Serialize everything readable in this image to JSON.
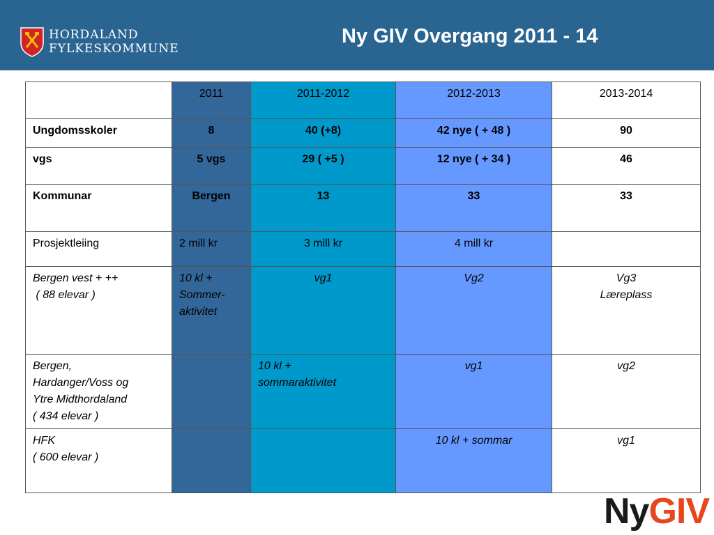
{
  "header": {
    "org_line1": "HORDALAND",
    "org_line2": "FYLKESKOMMUNE",
    "title": "Ny GIV Overgang 2011 - 14",
    "background": "#2a6491",
    "logo_icon": "county-coat-of-arms-icon"
  },
  "table": {
    "col_colors": [
      "#ffffff",
      "#336699",
      "#0099cc",
      "#6699ff",
      "#ffffff"
    ],
    "headers": [
      "",
      "2011",
      "2011-2012",
      "2012-2013",
      "2013-2014"
    ],
    "rows": [
      {
        "cells": [
          "Ungdomsskoler",
          "8",
          "40 (+8)",
          "42 nye ( + 48 )",
          "90"
        ]
      },
      {
        "cells": [
          "vgs",
          "5 vgs",
          "29 ( +5 )",
          "12 nye ( + 34 )",
          "46"
        ]
      },
      {
        "cells": [
          "Kommunar",
          "Bergen",
          "13",
          "33",
          "33"
        ]
      },
      {
        "cells": [
          "Prosjektleiing",
          "2 mill kr",
          "3 mill kr",
          "4 mill kr",
          ""
        ]
      },
      {
        "cells": [
          [
            "Bergen vest + ++",
            " ( 88 elevar )"
          ],
          [
            "10 kl +",
            "Sommer-",
            "aktivitet"
          ],
          [
            "vg1"
          ],
          [
            "Vg2"
          ],
          [
            "Vg3",
            "Læreplass"
          ]
        ]
      },
      {
        "cells": [
          [
            "Bergen,",
            "Hardanger/Voss og",
            "Ytre Midthordaland",
            "( 434 elevar )"
          ],
          [],
          [
            "10 kl +",
            "sommaraktivitet"
          ],
          [
            "vg1"
          ],
          [
            "vg2"
          ]
        ]
      },
      {
        "cells": [
          [
            "HFK",
            "( 600 elevar )"
          ],
          [],
          [],
          [
            "10 kl + sommar"
          ],
          [
            "vg1"
          ]
        ]
      }
    ]
  },
  "footer_logo": {
    "part1": "Ny",
    "part2": "GIV",
    "accent": "#e8471c"
  }
}
